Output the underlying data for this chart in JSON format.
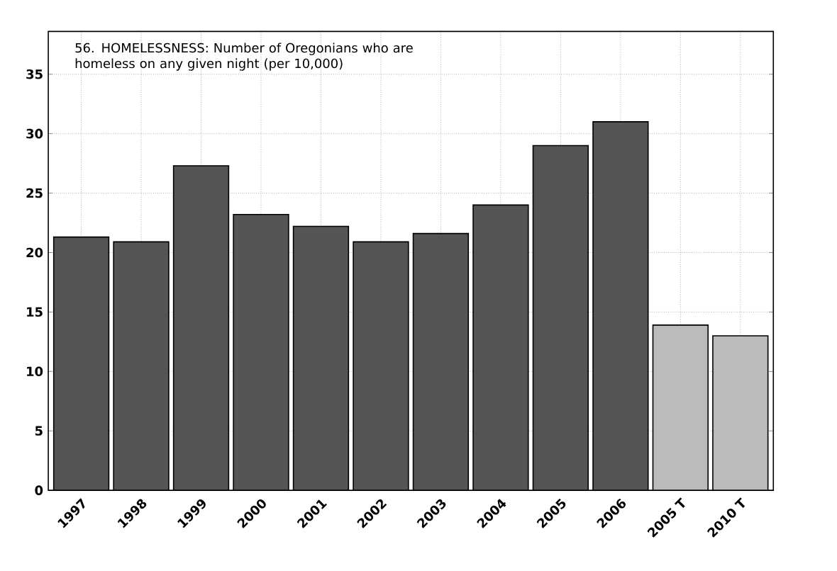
{
  "chart_data": {
    "type": "bar",
    "title": "56. HOMELESSNESS: Number of Oregonians who are homeless on any given night (per 10,000)",
    "categories": [
      "1997",
      "1998",
      "1999",
      "2000",
      "2001",
      "2002",
      "2003",
      "2004",
      "2005",
      "2006",
      "2005 T",
      "2010 T"
    ],
    "values": [
      21.3,
      20.9,
      27.3,
      23.2,
      22.2,
      20.9,
      21.6,
      24.0,
      29.0,
      31.0,
      13.9,
      13.0
    ],
    "colors": [
      "#555555",
      "#555555",
      "#555555",
      "#555555",
      "#555555",
      "#555555",
      "#555555",
      "#555555",
      "#555555",
      "#555555",
      "#bbbbbb",
      "#bbbbbb"
    ],
    "ylim": [
      0,
      38.6
    ],
    "yticks": [
      0,
      5,
      10,
      15,
      20,
      25,
      30,
      35
    ],
    "grid": true
  }
}
